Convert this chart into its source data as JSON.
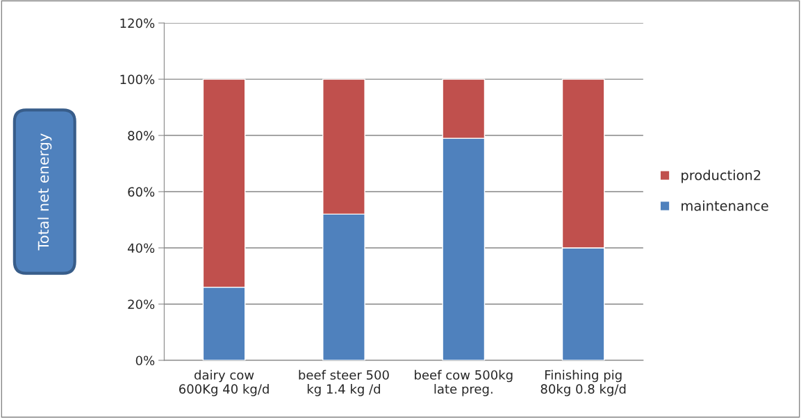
{
  "chart_data": {
    "type": "bar",
    "stacked": true,
    "ylabel": "Total net energy",
    "categories": [
      "dairy cow\n600Kg 40 kg/d",
      "beef steer 500\nkg 1.4 kg /d",
      "beef cow 500kg\nlate preg.",
      "Finishing pig\n80kg 0.8 kg/d"
    ],
    "series": [
      {
        "name": "maintenance",
        "color": "#4f81bd",
        "values": [
          26,
          52,
          79,
          40
        ]
      },
      {
        "name": "production2",
        "color": "#c0504d",
        "values": [
          74,
          48,
          21,
          60
        ]
      }
    ],
    "ylim": [
      0,
      120
    ],
    "yticks": [
      {
        "value": 0,
        "label": "0%"
      },
      {
        "value": 20,
        "label": "20%"
      },
      {
        "value": 40,
        "label": "40%"
      },
      {
        "value": 60,
        "label": "60%"
      },
      {
        "value": 80,
        "label": "80%"
      },
      {
        "value": 100,
        "label": "100%"
      },
      {
        "value": 120,
        "label": "120%"
      }
    ],
    "grid": "y",
    "legend": "right"
  }
}
